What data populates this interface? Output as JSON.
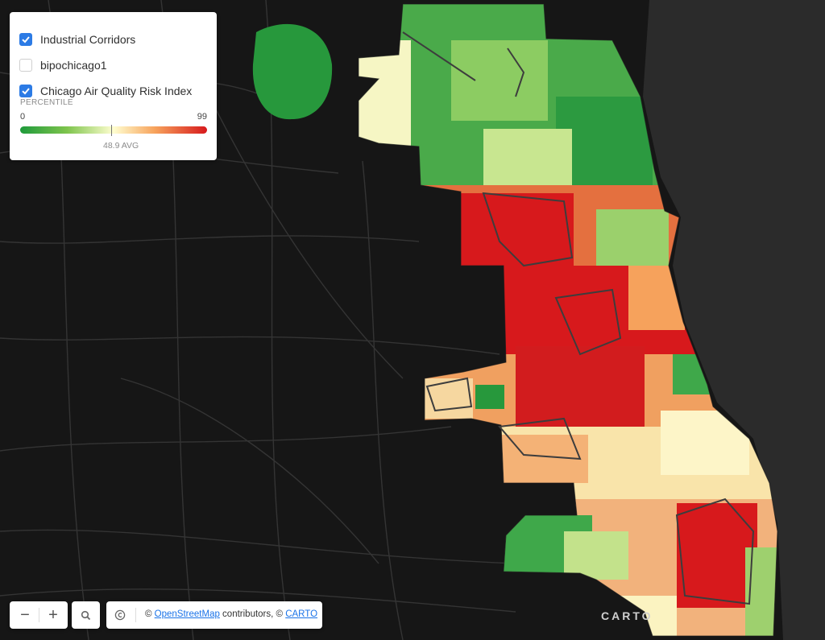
{
  "legend": {
    "layers": [
      {
        "label": "Industrial Corridors",
        "checked": true
      },
      {
        "label": "bipochicago1",
        "checked": false
      },
      {
        "label": "Chicago Air Quality Risk Index",
        "checked": true
      }
    ],
    "percentile_title": "PERCENTILE",
    "range_min": "0",
    "range_max": "99",
    "avg_label": "48.9 AVG",
    "ramp_colors": [
      "#1e9a3b",
      "#7ec44d",
      "#fffed0",
      "#f7a35c",
      "#d7191c"
    ]
  },
  "controls": {
    "zoom_out": "−",
    "zoom_in": "+",
    "search_icon": "search-icon",
    "info_icon": "copyright-icon",
    "attribution_prefix": "© ",
    "osm_link": "OpenStreetMap",
    "attribution_middle": " contributors, © ",
    "carto_link": "CARTO"
  },
  "watermark": "CARTO",
  "colors": {
    "basemap": "#161616",
    "water": "#2b2b2b",
    "roads": "#3a3a3a",
    "accent": "#2c7be5"
  }
}
